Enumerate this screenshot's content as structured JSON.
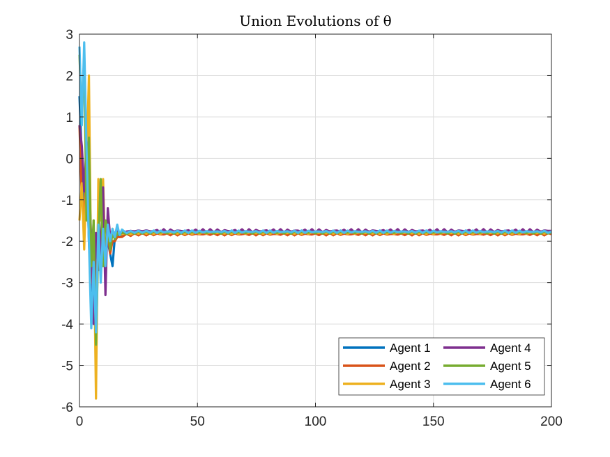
{
  "chart_data": {
    "type": "line",
    "title": "Union Evolutions of θ",
    "xlabel": "",
    "ylabel": "",
    "xlim": [
      0,
      200
    ],
    "ylim": [
      -6,
      3
    ],
    "x_ticks": [
      0,
      50,
      100,
      150,
      200
    ],
    "y_ticks": [
      3,
      2,
      1,
      0,
      -1,
      -2,
      -3,
      -4,
      -5,
      -6
    ],
    "x_tick_labels": [
      "0",
      "50",
      "100",
      "150",
      "200"
    ],
    "y_tick_labels": [
      "3",
      "2",
      "1",
      "0",
      "-1",
      "-2",
      "-3",
      "-4",
      "-5",
      "-6"
    ],
    "grid": true,
    "legend": {
      "placement": "bottom-right",
      "columns": 2
    },
    "series": [
      {
        "name": "Agent 1",
        "color": "#0072BD",
        "x": [
          0,
          1,
          2,
          3,
          4,
          5,
          6,
          7,
          8,
          9,
          10,
          11,
          12,
          13,
          14,
          15,
          16,
          17,
          18,
          20,
          25,
          30,
          40,
          60,
          100,
          150,
          200
        ],
        "y": [
          1.5,
          0.0,
          -1.2,
          0.3,
          -2.0,
          -3.2,
          -2.2,
          -3.6,
          -1.2,
          -2.6,
          -1.5,
          -2.3,
          -2.0,
          -2.3,
          -2.6,
          -1.9,
          -1.8,
          -1.9,
          -1.85,
          -1.82,
          -1.8,
          -1.8,
          -1.8,
          -1.8,
          -1.8,
          -1.8,
          -1.8
        ],
        "oscillation": 0.02
      },
      {
        "name": "Agent 2",
        "color": "#D95319",
        "x": [
          0,
          1,
          2,
          3,
          4,
          5,
          6,
          7,
          8,
          9,
          10,
          11,
          12,
          13,
          14,
          15,
          16,
          17,
          18,
          20,
          25,
          30,
          40,
          60,
          100,
          150,
          200
        ],
        "y": [
          0.8,
          -1.0,
          -1.5,
          0.1,
          -1.2,
          -2.8,
          -1.8,
          -3.5,
          -1.4,
          -2.5,
          -1.6,
          -2.4,
          -1.8,
          -2.3,
          -2.0,
          -2.0,
          -1.9,
          -1.9,
          -1.88,
          -1.85,
          -1.83,
          -1.83,
          -1.83,
          -1.83,
          -1.83,
          -1.83,
          -1.83
        ],
        "oscillation": 0.03
      },
      {
        "name": "Agent 3",
        "color": "#EDB120",
        "x": [
          0,
          1,
          2,
          3,
          4,
          5,
          6,
          7,
          8,
          9,
          10,
          11,
          12,
          13,
          14,
          15,
          16,
          17,
          18,
          20,
          25,
          30,
          40,
          60,
          100,
          150,
          200
        ],
        "y": [
          -1.5,
          -0.6,
          -2.2,
          -0.3,
          2.0,
          -3.0,
          -1.5,
          -5.8,
          -0.5,
          -1.5,
          -0.5,
          -2.6,
          -1.5,
          -2.1,
          -1.7,
          -1.9,
          -1.75,
          -1.85,
          -1.8,
          -1.82,
          -1.8,
          -1.8,
          -1.8,
          -1.8,
          -1.8,
          -1.8,
          -1.8
        ],
        "oscillation": 0.03
      },
      {
        "name": "Agent 4",
        "color": "#7E2F8E",
        "x": [
          0,
          1,
          2,
          3,
          4,
          5,
          6,
          7,
          8,
          9,
          10,
          11,
          12,
          13,
          14,
          15,
          16,
          17,
          18,
          20,
          25,
          30,
          40,
          60,
          100,
          150,
          200
        ],
        "y": [
          0.8,
          0.3,
          -0.8,
          0.4,
          -0.5,
          -2.0,
          -4.0,
          -1.8,
          -2.7,
          -2.3,
          -0.7,
          -3.3,
          -1.2,
          -1.9,
          -1.9,
          -1.8,
          -1.75,
          -1.8,
          -1.78,
          -1.76,
          -1.75,
          -1.75,
          -1.75,
          -1.75,
          -1.75,
          -1.75,
          -1.75
        ],
        "oscillation": 0.04
      },
      {
        "name": "Agent 5",
        "color": "#77AC30",
        "x": [
          0,
          1,
          2,
          3,
          4,
          5,
          6,
          7,
          8,
          9,
          10,
          11,
          12,
          13,
          14,
          15,
          16,
          17,
          18,
          20,
          25,
          30,
          40,
          60,
          100,
          150,
          200
        ],
        "y": [
          2.5,
          1.0,
          2.5,
          -1.5,
          0.5,
          -2.6,
          -1.5,
          -4.5,
          -2.0,
          -0.5,
          -2.6,
          -1.5,
          -1.7,
          -2.2,
          -1.8,
          -1.95,
          -1.8,
          -1.85,
          -1.8,
          -1.8,
          -1.79,
          -1.79,
          -1.79,
          -1.79,
          -1.79,
          -1.79,
          -1.79
        ],
        "oscillation": 0.03
      },
      {
        "name": "Agent 6",
        "color": "#4DBEEE",
        "x": [
          0,
          1,
          2,
          3,
          4,
          5,
          6,
          7,
          8,
          9,
          10,
          11,
          12,
          13,
          14,
          15,
          16,
          17,
          18,
          20,
          25,
          30,
          40,
          60,
          100,
          150,
          200
        ],
        "y": [
          2.7,
          0.8,
          2.8,
          0.2,
          -2.0,
          -4.1,
          -2.5,
          -4.2,
          -1.6,
          -3.0,
          -1.7,
          -2.6,
          -1.6,
          -2.0,
          -1.7,
          -1.9,
          -1.6,
          -1.85,
          -1.75,
          -1.78,
          -1.77,
          -1.77,
          -1.77,
          -1.77,
          -1.77,
          -1.77,
          -1.77
        ],
        "oscillation": 0.03
      }
    ]
  }
}
